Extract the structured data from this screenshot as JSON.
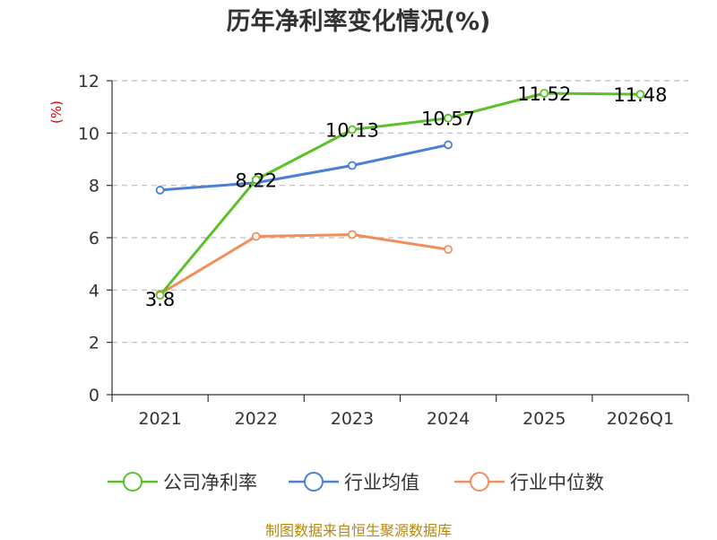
{
  "title": "历年净利率变化情况(%)",
  "source": "制图数据来自恒生聚源数据库",
  "chart_data": {
    "type": "line",
    "title": "历年净利率变化情况(%)",
    "ylabel": "(%)",
    "xlabel": "",
    "ylim": [
      0,
      12
    ],
    "yticks": [
      0,
      2,
      4,
      6,
      8,
      10,
      12
    ],
    "grid": true,
    "legend_position": "bottom",
    "categories": [
      "2021",
      "2022",
      "2023",
      "2024",
      "2025",
      "2026Q1"
    ],
    "series": [
      {
        "name": "公司净利率",
        "color": "#5bc129",
        "values": [
          3.8,
          8.22,
          10.13,
          10.57,
          11.52,
          11.48
        ],
        "labels": [
          "3.8",
          "8.22",
          "10.13",
          "10.57",
          "11.52",
          "11.48"
        ]
      },
      {
        "name": "行业均值",
        "color": "#4a7fd6",
        "values": [
          7.82,
          8.1,
          8.76,
          9.55,
          null,
          null
        ]
      },
      {
        "name": "行业中位数",
        "color": "#f28e5c",
        "values": [
          3.85,
          6.05,
          6.12,
          5.55,
          null,
          null
        ]
      }
    ]
  }
}
